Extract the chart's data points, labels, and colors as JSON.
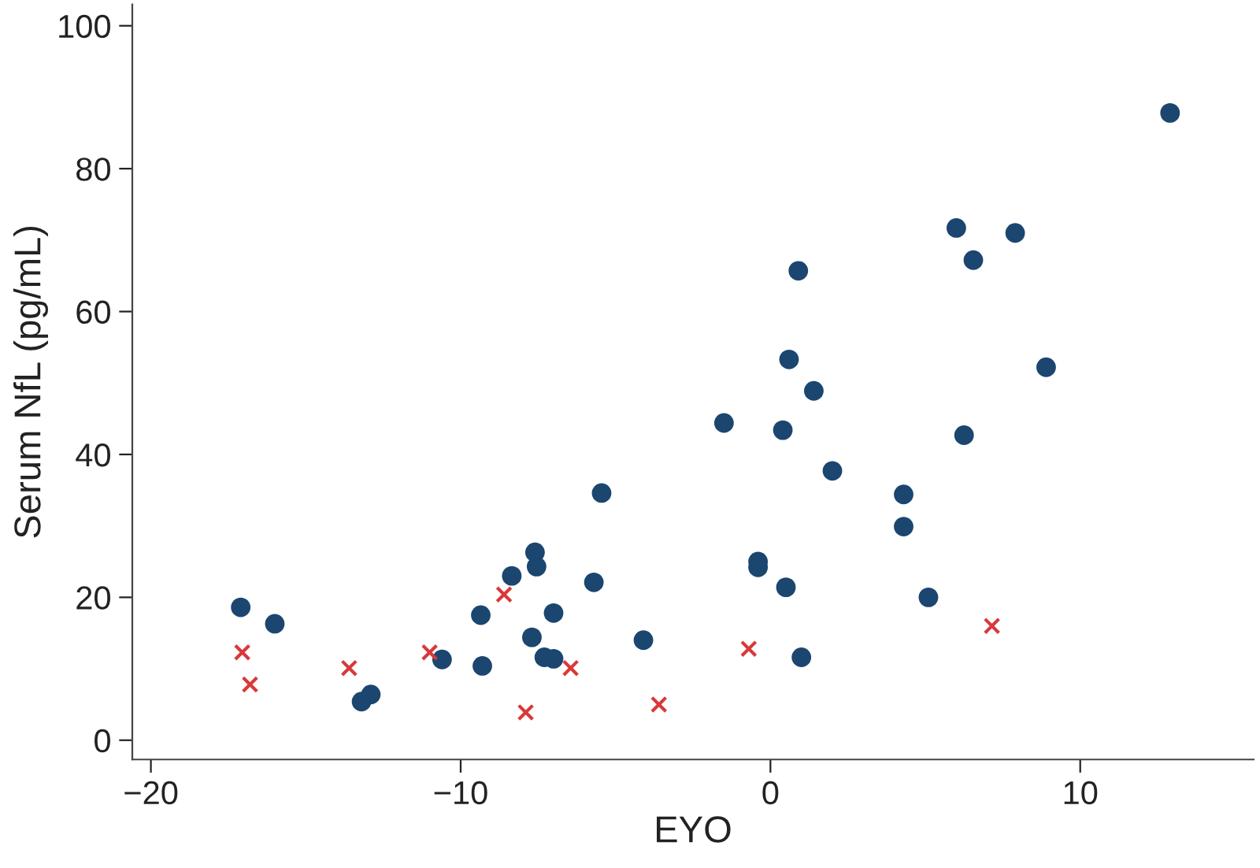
{
  "chart_data": {
    "type": "scatter",
    "xlabel": "EYO",
    "ylabel": "Serum NfL (pg/mL)",
    "xlim": [
      -20.6,
      15.6
    ],
    "ylim": [
      -2.7,
      103
    ],
    "xticks": [
      {
        "value": -20,
        "label": "−20"
      },
      {
        "value": -10,
        "label": "−10"
      },
      0,
      10
    ],
    "yticks": [
      0,
      20,
      40,
      60,
      80,
      100
    ],
    "grid": false,
    "legend": false,
    "series": [
      {
        "color": "#1b4670",
        "marker": "circle",
        "x": [
          -17.1,
          -16.0,
          -13.2,
          -12.9,
          -10.6,
          -9.35,
          -9.3,
          -8.35,
          -7.6,
          -7.55,
          -7.7,
          -7.3,
          -7.0,
          -7.0,
          -5.7,
          -5.45,
          -4.1,
          -1.5,
          -0.4,
          -0.4,
          0.4,
          0.5,
          0.6,
          0.9,
          1.0,
          1.4,
          2.0,
          4.3,
          4.3,
          5.1,
          6.0,
          6.25,
          6.55,
          7.9,
          8.9,
          12.9
        ],
        "values": [
          18.6,
          16.3,
          5.4,
          6.4,
          11.3,
          17.5,
          10.4,
          23.0,
          26.3,
          24.3,
          14.4,
          11.6,
          11.4,
          17.8,
          22.1,
          34.6,
          14.0,
          44.4,
          25.0,
          24.2,
          43.4,
          21.4,
          53.3,
          65.7,
          11.6,
          48.9,
          37.7,
          34.4,
          29.9,
          20.0,
          71.7,
          42.7,
          67.2,
          71.0,
          52.2,
          87.8
        ]
      },
      {
        "color": "#d9383a",
        "marker": "cross",
        "x": [
          -17.05,
          -16.8,
          -13.6,
          -11.0,
          -8.6,
          -7.9,
          -6.45,
          -3.6,
          -0.7,
          7.15
        ],
        "values": [
          12.3,
          7.8,
          10.1,
          12.3,
          20.4,
          3.9,
          10.1,
          5.0,
          12.8,
          16.0
        ]
      }
    ]
  }
}
